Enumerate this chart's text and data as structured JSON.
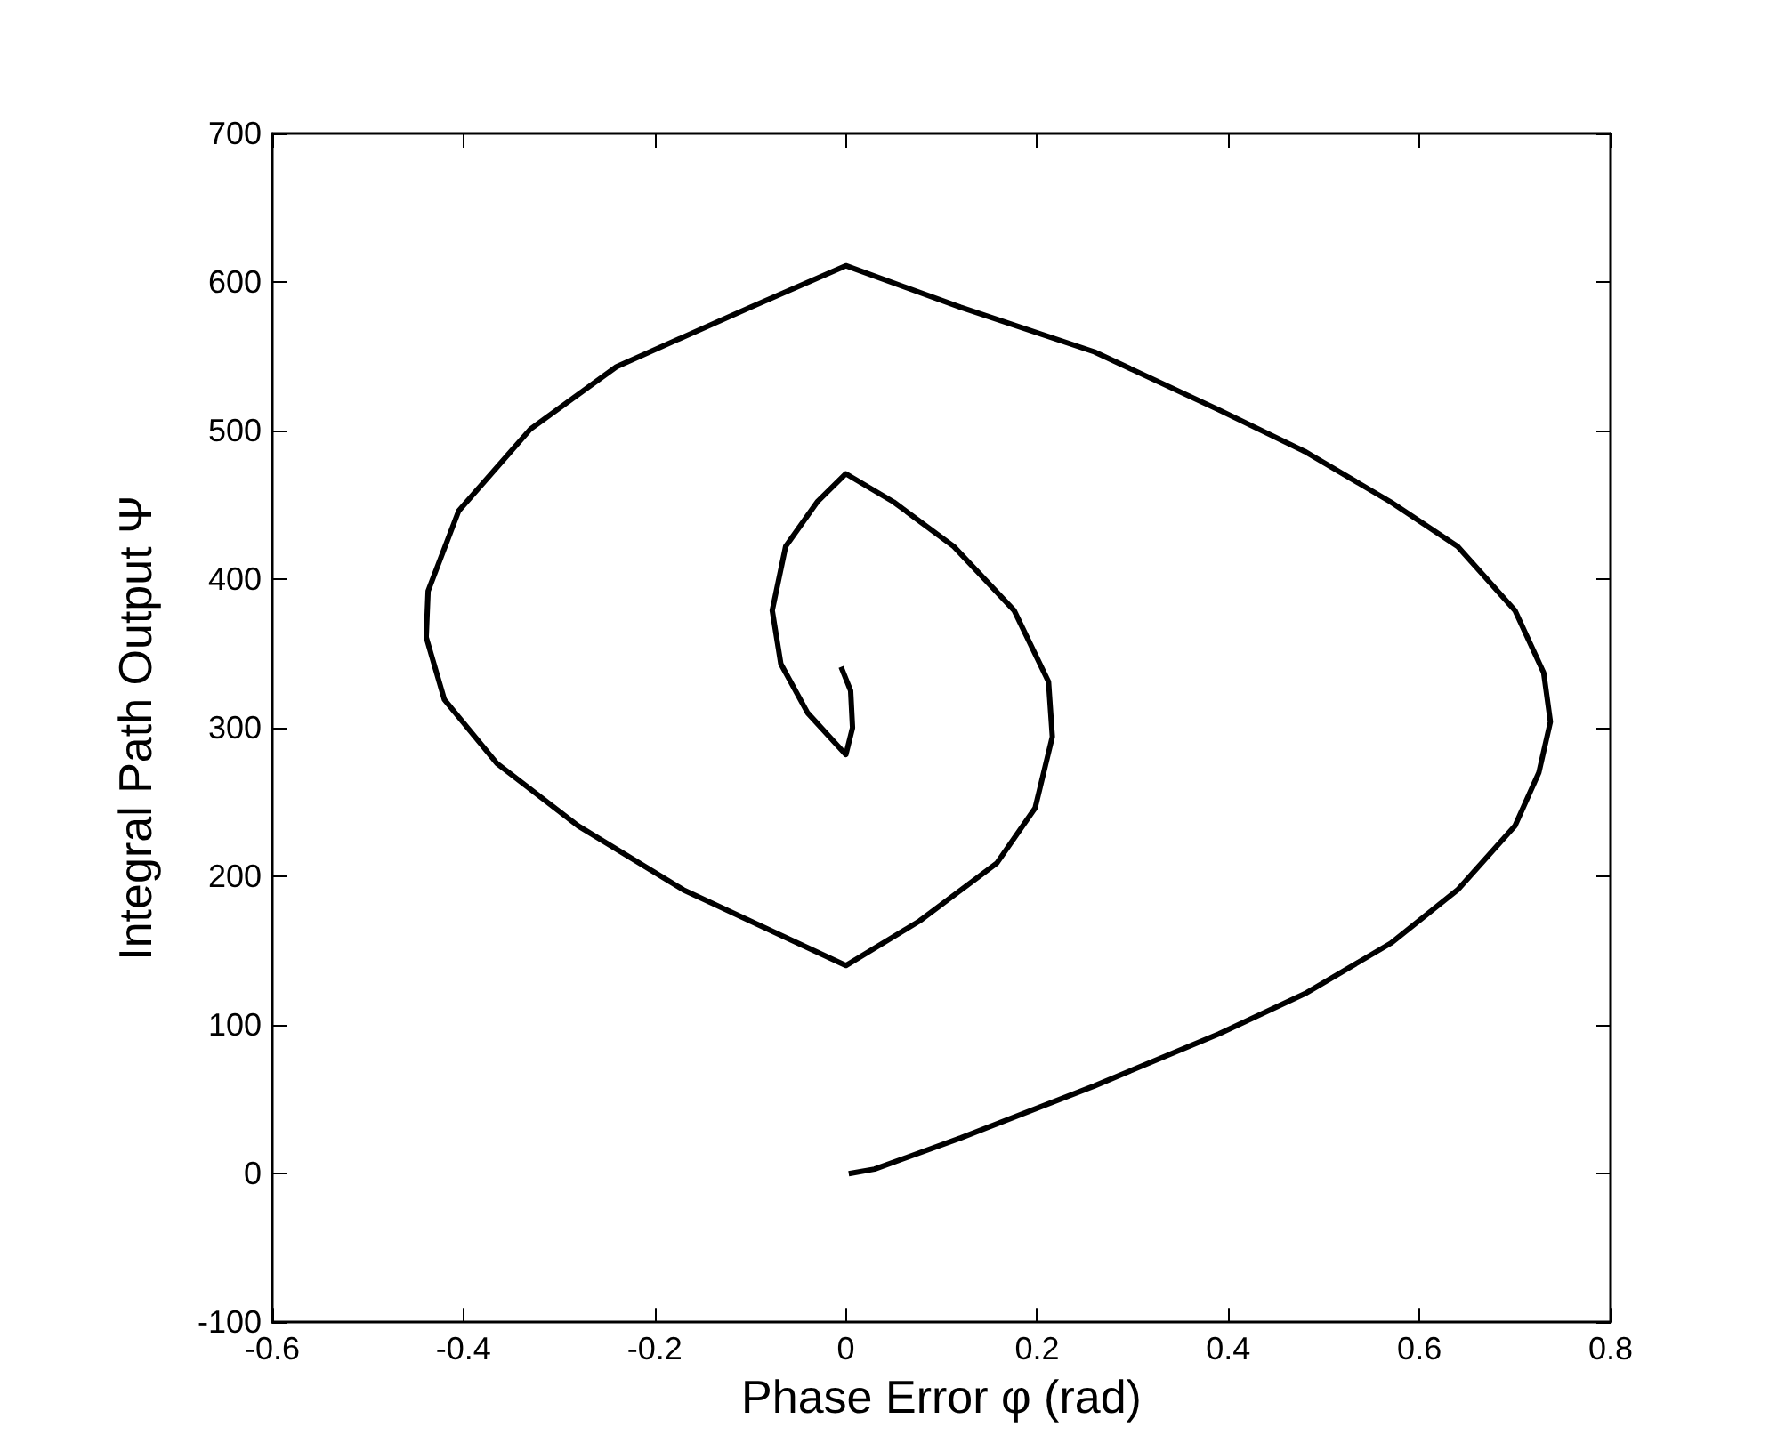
{
  "chart_data": {
    "type": "line",
    "xlabel": "Phase Error φ (rad)",
    "ylabel": "Integral Path Output Ψ",
    "xlim": [
      -0.6,
      0.8
    ],
    "ylim": [
      -100,
      700
    ],
    "xticks": [
      -0.6,
      -0.4,
      -0.2,
      0,
      0.2,
      0.4,
      0.6,
      0.8
    ],
    "yticks": [
      -100,
      0,
      100,
      200,
      300,
      400,
      500,
      600,
      700
    ],
    "grid": false,
    "marker": "none",
    "line_style": "solid",
    "series": [
      {
        "color": "#000000",
        "x": [
          0.003,
          0.03,
          0.12,
          0.26,
          0.39,
          0.48,
          0.57,
          0.64,
          0.7,
          0.725,
          0.737,
          0.73,
          0.7,
          0.64,
          0.57,
          0.48,
          0.39,
          0.26,
          0.12,
          0,
          -0.1,
          -0.24,
          -0.33,
          -0.405,
          -0.437,
          -0.439,
          -0.42,
          -0.365,
          -0.28,
          -0.17,
          -0.06,
          0,
          0.077,
          0.158,
          0.198,
          0.216,
          0.212,
          0.176,
          0.113,
          0.05,
          0,
          -0.03,
          -0.063,
          -0.077,
          -0.068,
          -0.04,
          0,
          0.007,
          0.005,
          -0.005
        ],
        "values": [
          0,
          3,
          24,
          59,
          94,
          121,
          155,
          191,
          234,
          270,
          304,
          337,
          379,
          422,
          452,
          486,
          514,
          553,
          583,
          611,
          583,
          543,
          501,
          446,
          392,
          361,
          319,
          276,
          234,
          191,
          158,
          140,
          170,
          209,
          246,
          294,
          331,
          379,
          422,
          452,
          471,
          452,
          422,
          379,
          343,
          310,
          282,
          300,
          325,
          341
        ]
      }
    ]
  }
}
